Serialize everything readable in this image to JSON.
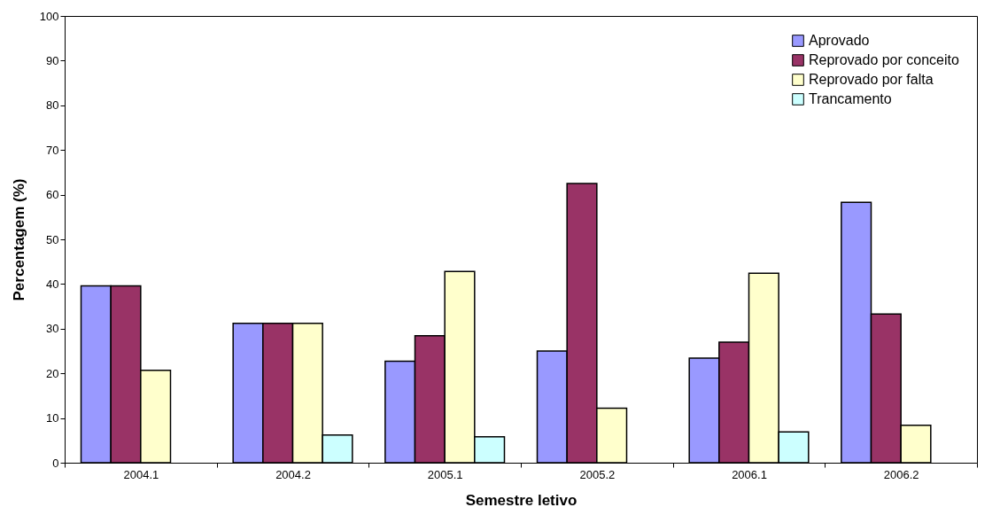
{
  "chart_data": {
    "type": "bar",
    "xlabel": "Semestre letivo",
    "ylabel": "Percentagem (%)",
    "categories": [
      "2004.1",
      "2004.2",
      "2005.1",
      "2005.2",
      "2006.1",
      "2006.2"
    ],
    "series": [
      {
        "name": "Aprovado",
        "color": "#9999ff",
        "values": [
          39.6,
          31.2,
          22.7,
          25.0,
          23.4,
          58.3
        ]
      },
      {
        "name": "Reprovado por conceito",
        "color": "#993366",
        "values": [
          39.6,
          31.2,
          28.4,
          62.5,
          27.0,
          33.3
        ]
      },
      {
        "name": "Reprovado por falta",
        "color": "#ffffcc",
        "values": [
          20.7,
          31.2,
          42.8,
          12.2,
          42.4,
          8.4
        ]
      },
      {
        "name": "Trancamento",
        "color": "#ccffff",
        "values": [
          null,
          6.2,
          5.8,
          null,
          6.9,
          null
        ]
      }
    ],
    "ylim": [
      0,
      100
    ],
    "yticks": [
      0,
      10,
      20,
      30,
      40,
      50,
      60,
      70,
      80,
      90,
      100
    ],
    "grid": false,
    "legend": "top right"
  }
}
